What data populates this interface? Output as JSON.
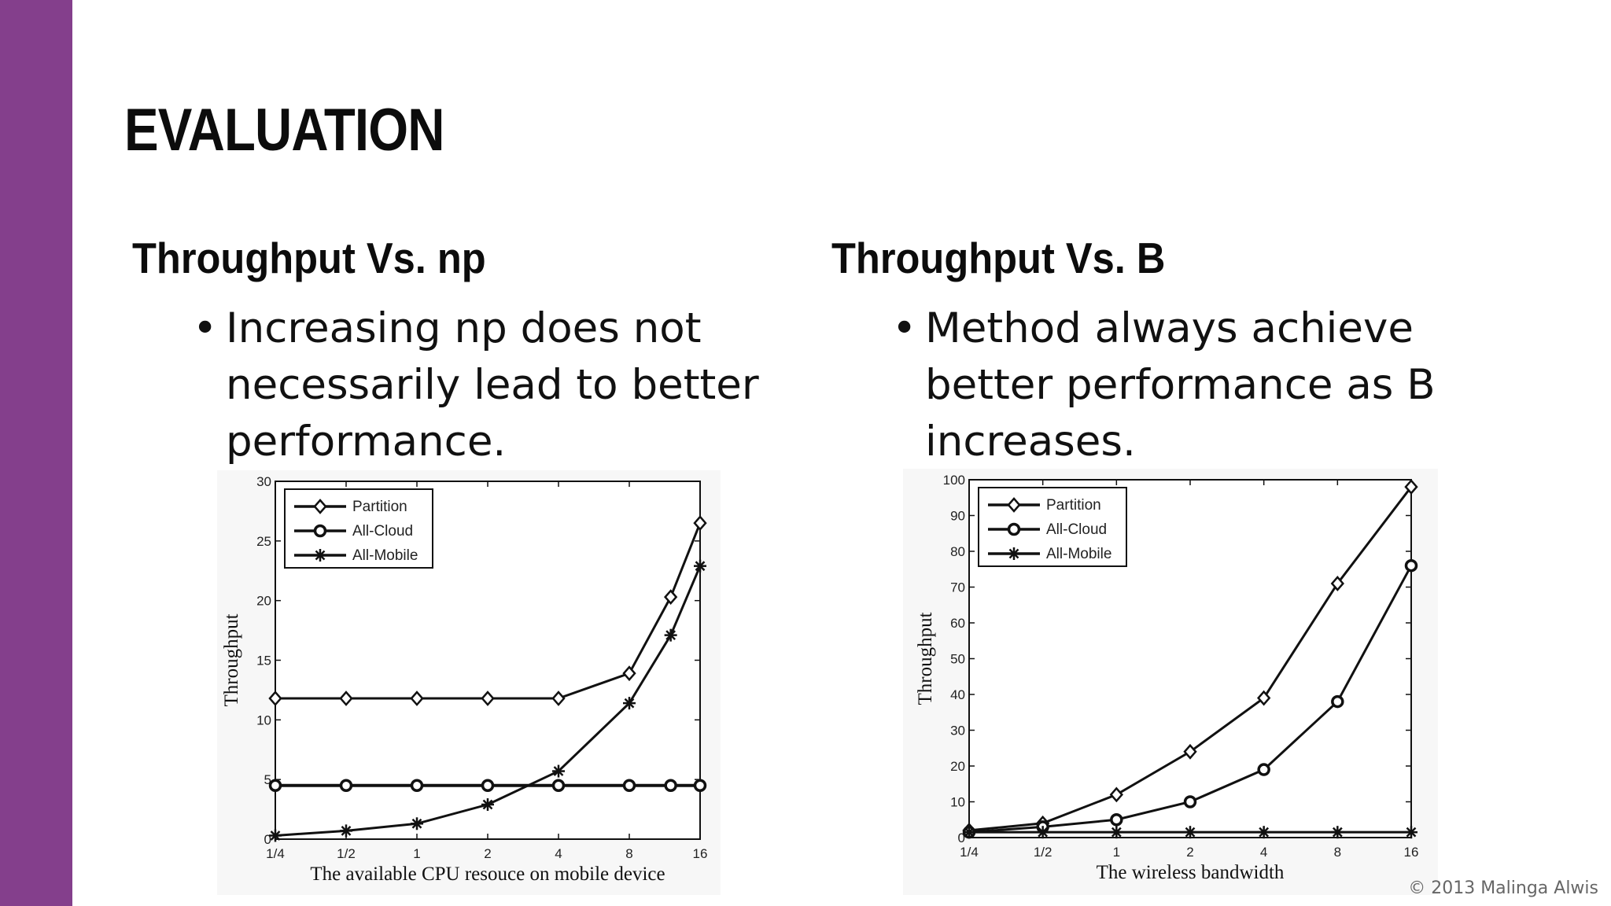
{
  "slide": {
    "title": "EVALUATION",
    "accent_color": "#843f8c",
    "copyright": "© 2013 Malinga Alwis"
  },
  "left": {
    "heading": "Throughput Vs. np",
    "bullet_marker": "•",
    "bullet": "Increasing np does not necessarily lead to better performance."
  },
  "right": {
    "heading": "Throughput Vs. B",
    "bullet_marker": "•",
    "bullet": "Method always achieve better performance as B increases."
  },
  "chart_data": [
    {
      "type": "line",
      "xlabel": "The available CPU resouce on mobile device",
      "ylabel": "Throughput",
      "x_ticks": [
        "1/4",
        "1/2",
        "1",
        "2",
        "4",
        "8",
        "16"
      ],
      "x": [
        0.25,
        0.5,
        1,
        2,
        4,
        8,
        12,
        16
      ],
      "x_scale": "log2",
      "ylim": [
        0,
        30
      ],
      "y_ticks": [
        "0",
        "5",
        "10",
        "15",
        "20",
        "25",
        "30"
      ],
      "grid": false,
      "legend_position": "top-left",
      "series": [
        {
          "name": "Partition",
          "marker": "diamond",
          "values": [
            11.8,
            11.8,
            11.8,
            11.8,
            11.8,
            13.9,
            20.3,
            26.5
          ]
        },
        {
          "name": "All-Cloud",
          "marker": "circle",
          "values": [
            4.5,
            4.5,
            4.5,
            4.5,
            4.5,
            4.5,
            4.5,
            4.5
          ]
        },
        {
          "name": "All-Mobile",
          "marker": "star",
          "values": [
            0.3,
            0.7,
            1.3,
            2.9,
            5.7,
            11.4,
            17.1,
            22.9
          ]
        }
      ]
    },
    {
      "type": "line",
      "xlabel": "The wireless bandwidth",
      "ylabel": "Throughput",
      "x_ticks": [
        "1/4",
        "1/2",
        "1",
        "2",
        "4",
        "8",
        "16"
      ],
      "x": [
        0.25,
        0.5,
        1,
        2,
        4,
        8,
        16
      ],
      "x_scale": "log2",
      "ylim": [
        0,
        100
      ],
      "y_ticks": [
        "0",
        "10",
        "20",
        "30",
        "40",
        "50",
        "60",
        "70",
        "80",
        "90",
        "100"
      ],
      "grid": false,
      "legend_position": "top-left",
      "series": [
        {
          "name": "Partition",
          "marker": "diamond",
          "values": [
            2,
            4,
            12,
            24,
            39,
            71,
            98
          ]
        },
        {
          "name": "All-Cloud",
          "marker": "circle",
          "values": [
            1.5,
            3,
            5,
            10,
            19,
            38,
            76
          ]
        },
        {
          "name": "All-Mobile",
          "marker": "star",
          "values": [
            1.5,
            1.5,
            1.5,
            1.5,
            1.5,
            1.5,
            1.5
          ]
        }
      ]
    }
  ]
}
